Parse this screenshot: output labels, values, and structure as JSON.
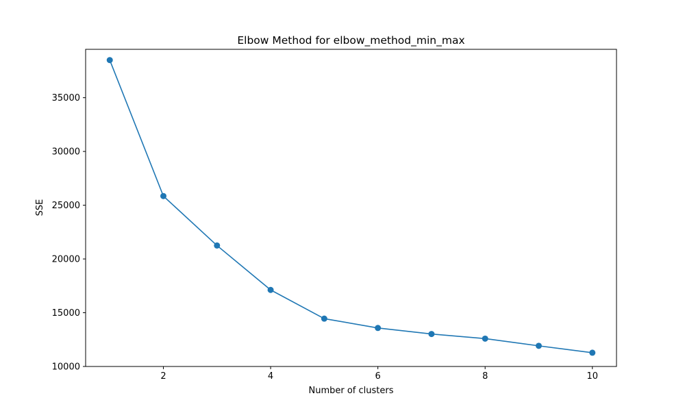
{
  "chart_data": {
    "type": "line",
    "title": "Elbow Method for elbow_method_min_max",
    "xlabel": "Number of clusters",
    "ylabel": "SSE",
    "x": [
      1,
      2,
      3,
      4,
      5,
      6,
      7,
      8,
      9,
      10
    ],
    "series": [
      {
        "values": [
          38500,
          25850,
          21250,
          17120,
          14450,
          13580,
          13020,
          12590,
          11920,
          11280
        ],
        "color": "#1f77b4",
        "marker": "circle"
      }
    ],
    "xlim": [
      0.55,
      10.45
    ],
    "ylim": [
      10000,
      39500
    ],
    "xticks": [
      2,
      4,
      6,
      8,
      10
    ],
    "yticks": [
      10000,
      15000,
      20000,
      25000,
      30000,
      35000
    ],
    "xtick_labels": [
      "2",
      "4",
      "6",
      "8",
      "10"
    ],
    "ytick_labels": [
      "10000",
      "15000",
      "20000",
      "25000",
      "30000",
      "35000"
    ],
    "grid": false,
    "legend": "none"
  }
}
